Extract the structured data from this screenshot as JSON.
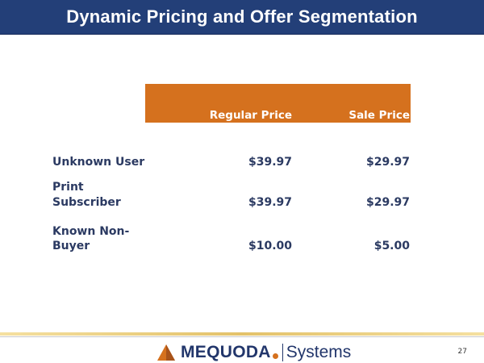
{
  "slide": {
    "title": "Dynamic Pricing and Offer Segmentation",
    "page_number": "27"
  },
  "table": {
    "columns": [
      "Regular Price",
      "Sale Price"
    ],
    "rows": [
      {
        "label_line1": "Unknown User",
        "label_line2": "",
        "regular": "$39.97",
        "sale": "$29.97"
      },
      {
        "label_line1": "Print",
        "label_line2": "Subscriber",
        "regular": "$39.97",
        "sale": "$29.97"
      },
      {
        "label_line1": "Known Non-",
        "label_line2": "Buyer",
        "regular": "$10.00",
        "sale": "$5.00"
      }
    ]
  },
  "footer": {
    "brand": "MEQUODA",
    "product": "Systems",
    "icon": "pyramid-logo-icon"
  },
  "colors": {
    "title_bar": "#233f78",
    "header_band": "#d5711e",
    "text": "#2b3a62"
  }
}
